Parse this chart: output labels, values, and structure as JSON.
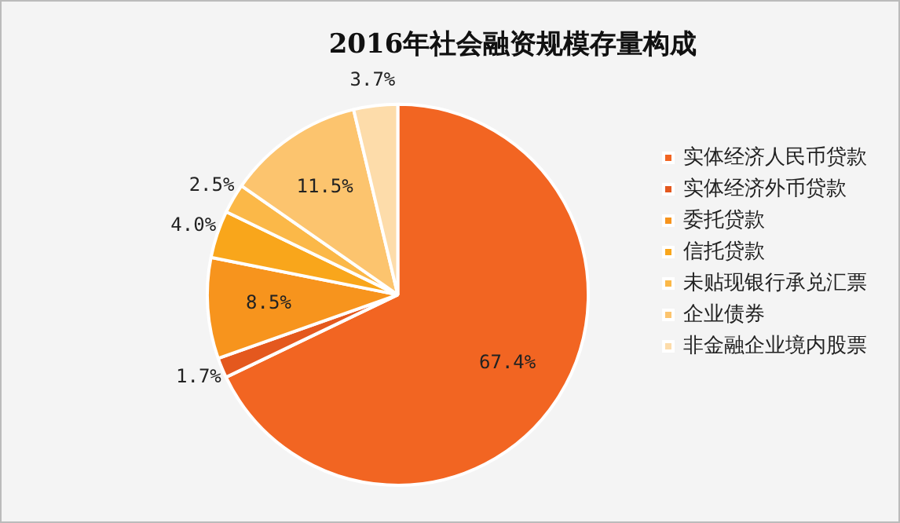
{
  "chart_data": {
    "type": "pie",
    "title": "2016年社会融资规模存量构成",
    "categories": [
      "实体经济人民币贷款",
      "实体经济外币贷款",
      "委托贷款",
      "信托贷款",
      "未贴现银行承兑汇票",
      "企业债券",
      "非金融企业境内股票"
    ],
    "values": [
      67.4,
      1.7,
      8.5,
      4.0,
      2.5,
      11.5,
      3.7
    ],
    "value_labels": [
      "67.4%",
      "1.7%",
      "8.5%",
      "4.0%",
      "2.5%",
      "11.5%",
      "3.7%"
    ],
    "colors": [
      "#f26522",
      "#e4581e",
      "#f7941d",
      "#f9a61b",
      "#fbb848",
      "#fcc46e",
      "#fddcaa"
    ],
    "legend": "right"
  }
}
